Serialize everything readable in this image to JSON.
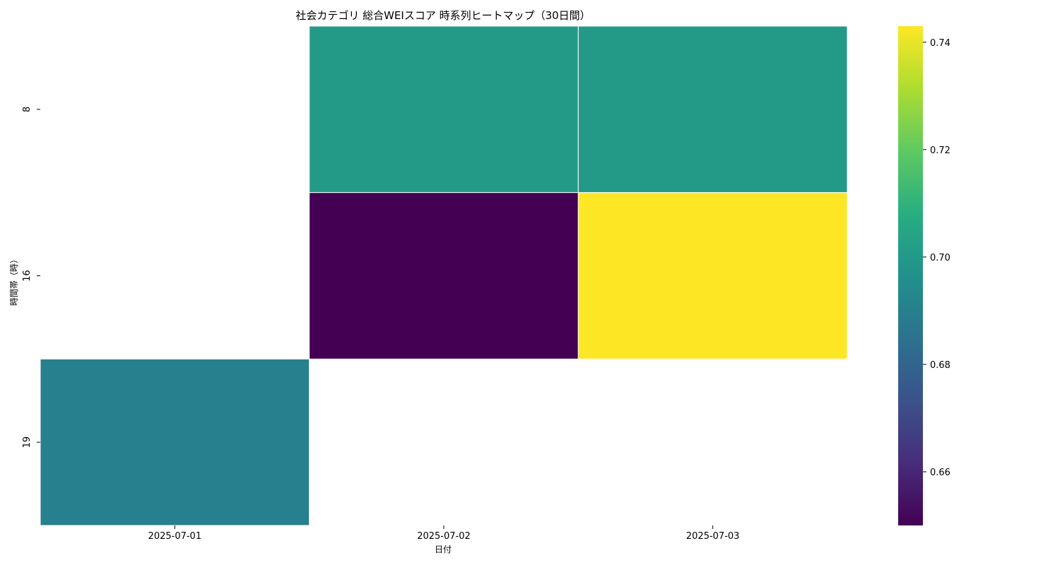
{
  "chart_data": {
    "type": "heatmap",
    "title": "社会カテゴリ 総合WEIスコア 時系列ヒートマップ（30日間）",
    "xlabel": "日付",
    "ylabel": "時間帯（時）",
    "x_categories": [
      "2025-07-01",
      "2025-07-02",
      "2025-07-03"
    ],
    "y_categories": [
      "8",
      "16",
      "19"
    ],
    "values": [
      [
        null,
        0.7,
        0.7
      ],
      [
        null,
        0.65,
        0.743
      ],
      [
        0.69,
        null,
        null
      ]
    ],
    "colormap": "viridis",
    "vmin": 0.65,
    "vmax": 0.743,
    "colorbar_ticks": [
      0.66,
      0.68,
      0.7,
      0.72,
      0.74
    ],
    "colorbar_tick_labels": [
      "0.66",
      "0.68",
      "0.70",
      "0.72",
      "0.74"
    ],
    "cell_border_color": "#ffffff"
  }
}
